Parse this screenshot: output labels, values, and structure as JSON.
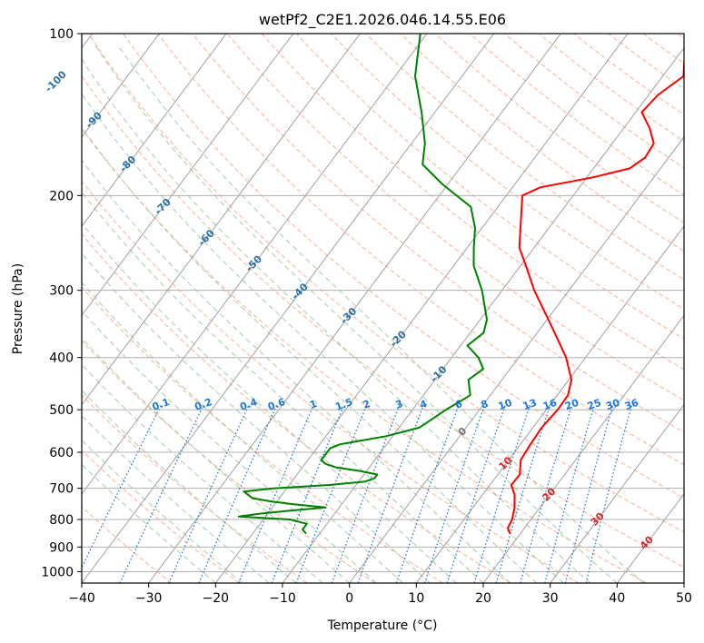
{
  "chart_data": {
    "type": "line",
    "subtype": "skew-T log-P diagram",
    "title": "wetPf2_C2E1.2026.046.14.55.E06",
    "xlabel": "Temperature (°C)",
    "ylabel": "Pressure (hPa)",
    "xlim": [
      -40,
      50
    ],
    "ylim": [
      1050,
      100
    ],
    "x_ticks": [
      -40,
      -30,
      -20,
      -10,
      0,
      10,
      20,
      30,
      40,
      50
    ],
    "x_tick_labels": [
      "−40",
      "−30",
      "−20",
      "−10",
      "0",
      "10",
      "20",
      "30",
      "40",
      "50"
    ],
    "y_ticks": [
      100,
      200,
      300,
      400,
      500,
      600,
      700,
      800,
      900,
      1000
    ],
    "y_tick_labels": [
      "100",
      "200",
      "300",
      "400",
      "500",
      "600",
      "700",
      "800",
      "900",
      "1000"
    ],
    "grid": true,
    "colors": {
      "temperature": "#ff0000",
      "dewpoint": "#008000",
      "isotherm": "#a0a0a0",
      "dry_adiabat": "#ff9a7a",
      "moist_adiabat": "#90c890",
      "mixing_ratio": "#1f77d4",
      "isotherm_label": "#2a6fa8",
      "warm_label": "#d62728",
      "zero_label": "#707070"
    },
    "series": [
      {
        "name": "Temperature",
        "pressure": [
          850,
          830,
          800,
          760,
          720,
          690,
          660,
          620,
          580,
          540,
          500,
          470,
          440,
          400,
          370,
          340,
          300,
          270,
          250,
          220,
          200,
          193,
          185,
          178,
          170,
          160,
          150,
          140,
          130,
          120,
          110,
          100
        ],
        "values": [
          18.5,
          17.5,
          17.2,
          16.2,
          14.8,
          13.2,
          13.3,
          11.8,
          11.5,
          11.3,
          11.7,
          11.6,
          10.4,
          7.1,
          3.8,
          0.2,
          -5.2,
          -9.2,
          -12.2,
          -15.3,
          -17.6,
          -15.8,
          -9.1,
          -4.6,
          -3.5,
          -3.8,
          -6.1,
          -9.1,
          -8.6,
          -6.9,
          -9.0,
          -10.1
        ]
      },
      {
        "name": "Dewpoint",
        "pressure": [
          850,
          835,
          815,
          800,
          790,
          780,
          770,
          760,
          750,
          740,
          730,
          720,
          710,
          700,
          690,
          680,
          670,
          660,
          650,
          640,
          630,
          620,
          610,
          600,
          590,
          580,
          560,
          540,
          520,
          500,
          470,
          440,
          420,
          400,
          380,
          360,
          340,
          300,
          270,
          250,
          230,
          210,
          190,
          175,
          160,
          140,
          120,
          100
        ],
        "values": [
          -12.0,
          -13.0,
          -13.0,
          -16.0,
          -24.0,
          -21.0,
          -17.0,
          -12.0,
          -17.0,
          -21.0,
          -24.0,
          -25.0,
          -26.0,
          -22.0,
          -14.0,
          -9.0,
          -8.0,
          -8.0,
          -11.0,
          -15.0,
          -17.0,
          -18.0,
          -18.0,
          -18.0,
          -18.0,
          -17.0,
          -11.0,
          -7.0,
          -6.0,
          -5.0,
          -3.0,
          -5.0,
          -4.0,
          -6.0,
          -9.0,
          -8.0,
          -9.0,
          -13.0,
          -17.0,
          -19.0,
          -21.0,
          -24.0,
          -31.0,
          -36.0,
          -38.0,
          -42.0,
          -47.0,
          -51.0
        ]
      }
    ],
    "isotherm_labels": [
      "-100",
      "-90",
      "-80",
      "-70",
      "-60",
      "-50",
      "-40",
      "-30",
      "-20",
      "-10"
    ],
    "warm_isotherm_labels": [
      "0",
      "10",
      "20",
      "30",
      "40"
    ],
    "mixing_ratio_labels": [
      "0.1",
      "0.2",
      "0.4",
      "0.6",
      "1",
      "1.5",
      "2",
      "3",
      "4",
      "6",
      "8",
      "10",
      "13",
      "16",
      "20",
      "25",
      "30",
      "36"
    ]
  }
}
